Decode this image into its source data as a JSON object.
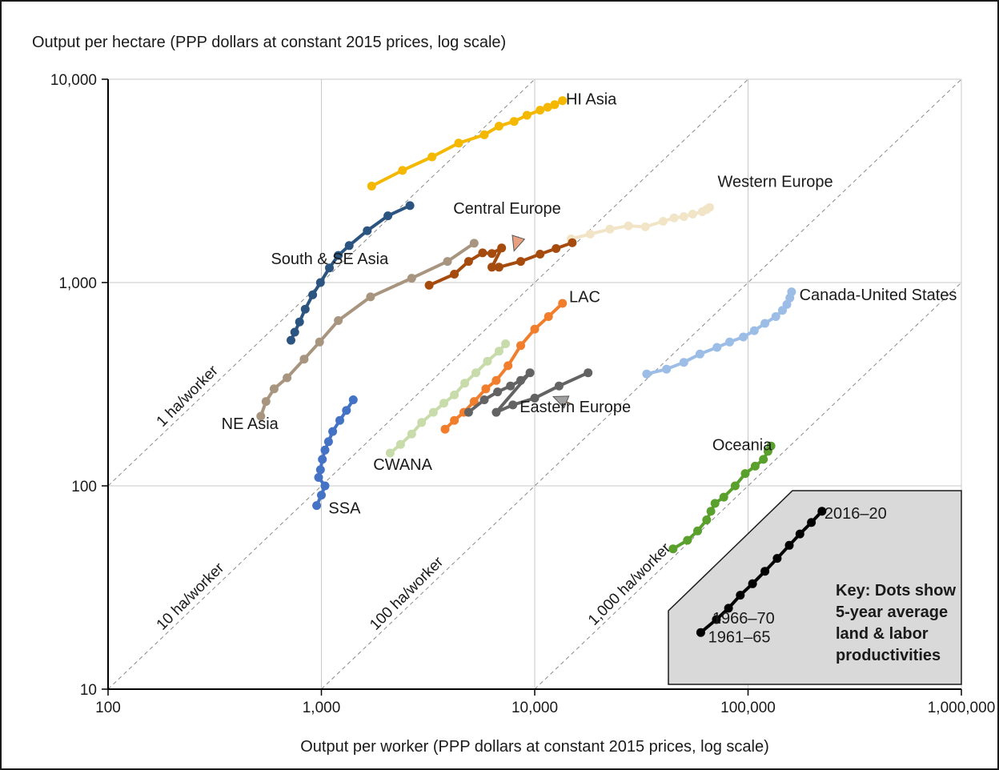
{
  "chart_data": {
    "type": "scatter",
    "xlabel": "Output per worker (PPP dollars at constant 2015 prices, log scale)",
    "ylabel": "Output per hectare (PPP dollars at constant 2015 prices, log scale)",
    "xscale": "log",
    "yscale": "log",
    "xlim": [
      100,
      1000000
    ],
    "ylim": [
      10,
      10000
    ],
    "x_ticks": [
      {
        "value": 100,
        "label": "100"
      },
      {
        "value": 1000,
        "label": "1,000"
      },
      {
        "value": 10000,
        "label": "10,000"
      },
      {
        "value": 100000,
        "label": "100,000"
      },
      {
        "value": 1000000,
        "label": "1,000,000"
      }
    ],
    "y_ticks": [
      {
        "value": 10,
        "label": "10"
      },
      {
        "value": 100,
        "label": "100"
      },
      {
        "value": 1000,
        "label": "1,000"
      },
      {
        "value": 10000,
        "label": "10,000"
      }
    ],
    "grid": true,
    "reference_lines": [
      {
        "ha_per_worker": 1,
        "label": "1 ha/worker",
        "label_x": 180
      },
      {
        "ha_per_worker": 10,
        "label": "10 ha/worker",
        "label_x": 180
      },
      {
        "ha_per_worker": 100,
        "label": "100 ha/worker",
        "label_x": 1800
      },
      {
        "ha_per_worker": 1000,
        "label": "1,000 ha/worker",
        "label_x": 19000
      }
    ],
    "series": [
      {
        "name": "HI Asia",
        "color": "#f5b800",
        "x": [
          1720,
          2400,
          3300,
          4400,
          5800,
          6800,
          8000,
          9200,
          10600,
          11500,
          12400,
          13500
        ],
        "y": [
          2980,
          3560,
          4150,
          4850,
          5330,
          5880,
          6200,
          6650,
          7050,
          7280,
          7500,
          7850
        ]
      },
      {
        "name": "Western Europe",
        "color": "#f2e4c7",
        "x": [
          14800,
          18200,
          22500,
          27500,
          33000,
          40000,
          45000,
          50000,
          55000,
          61000,
          64000,
          66000
        ],
        "y": [
          1640,
          1730,
          1830,
          1900,
          1880,
          2000,
          2080,
          2110,
          2170,
          2230,
          2290,
          2340
        ]
      },
      {
        "name": "Central Europe",
        "color": "#a64b0e",
        "x": [
          3200,
          4200,
          4900,
          5700,
          6300,
          7000,
          6300,
          6800,
          8600,
          10600,
          12600,
          15000
        ],
        "y": [
          970,
          1100,
          1270,
          1400,
          1390,
          1480,
          1190,
          1190,
          1270,
          1380,
          1470,
          1570
        ]
      },
      {
        "name": "South & SE Asia",
        "color": "#2b5580",
        "x": [
          720,
          750,
          790,
          840,
          910,
          990,
          1090,
          1200,
          1350,
          1640,
          2050,
          2600
        ],
        "y": [
          520,
          570,
          640,
          740,
          870,
          1000,
          1180,
          1360,
          1520,
          1800,
          2130,
          2390
        ]
      },
      {
        "name": "NE Asia",
        "color": "#a8957f",
        "x": [
          520,
          550,
          600,
          690,
          830,
          980,
          1200,
          1700,
          2650,
          3900,
          5200
        ],
        "y": [
          220,
          260,
          300,
          340,
          420,
          510,
          650,
          850,
          1050,
          1270,
          1560
        ]
      },
      {
        "name": "LAC",
        "color": "#f07e2c",
        "x": [
          3800,
          4200,
          4650,
          5200,
          5900,
          6600,
          7500,
          8600,
          10000,
          11600,
          13500
        ],
        "y": [
          190,
          210,
          230,
          260,
          300,
          330,
          390,
          490,
          590,
          680,
          790
        ]
      },
      {
        "name": "CWANA",
        "color": "#c8dcab",
        "x": [
          2100,
          2350,
          2650,
          2950,
          3350,
          3750,
          4200,
          4700,
          5300,
          6000,
          6800,
          7300
        ],
        "y": [
          145,
          160,
          180,
          205,
          230,
          255,
          280,
          320,
          360,
          410,
          460,
          500
        ]
      },
      {
        "name": "Eastern Europe",
        "color": "#636363",
        "x": [
          4900,
          5800,
          6700,
          7700,
          8600,
          9500,
          6600,
          7900,
          10000,
          13000,
          17800
        ],
        "y": [
          230,
          265,
          290,
          310,
          330,
          360,
          230,
          250,
          270,
          310,
          360
        ]
      },
      {
        "name": "SSA",
        "color": "#4472c4",
        "x": [
          950,
          1000,
          1040,
          970,
          990,
          1010,
          1040,
          1080,
          1130,
          1220,
          1310,
          1410
        ],
        "y": [
          80,
          90,
          100,
          110,
          120,
          135,
          150,
          165,
          185,
          210,
          235,
          265
        ]
      },
      {
        "name": "Canada-United States",
        "color": "#9cbde6",
        "x": [
          33500,
          41500,
          50000,
          59500,
          71500,
          82000,
          95000,
          107000,
          120000,
          135000,
          145000,
          152000,
          157000,
          160000
        ],
        "y": [
          355,
          375,
          405,
          445,
          480,
          510,
          540,
          580,
          630,
          680,
          730,
          780,
          840,
          900
        ]
      },
      {
        "name": "Oceania",
        "color": "#5aa02c",
        "x": [
          44500,
          52000,
          58000,
          64000,
          67000,
          70000,
          77000,
          87000,
          97000,
          108000,
          118000,
          124000,
          128000
        ],
        "y": [
          49,
          54,
          60,
          68,
          75,
          82,
          88,
          100,
          115,
          125,
          135,
          148,
          157
        ]
      },
      {
        "name": "",
        "color": "#000000",
        "x": [
          60000,
          71000,
          81000,
          92000,
          105000,
          120000,
          137000,
          156000,
          175000,
          198000,
          222000
        ],
        "y": [
          19,
          22,
          25,
          29,
          33,
          38,
          44,
          51,
          58,
          66,
          75
        ]
      }
    ],
    "annotations": [
      {
        "text": "HI Asia",
        "ax": 14000,
        "ay": 7500
      },
      {
        "text": "Western Europe",
        "ax": 72000,
        "ay": 2950
      },
      {
        "text": "Central Europe",
        "ax": 4150,
        "ay": 2180
      },
      {
        "text": "South & SE Asia",
        "ax": 580,
        "ay": 1230
      },
      {
        "text": "NE Asia",
        "ax": 340,
        "ay": 190
      },
      {
        "text": "LAC",
        "ax": 14500,
        "ay": 800
      },
      {
        "text": "Canada-United States",
        "ax": 174000,
        "ay": 820
      },
      {
        "text": "Eastern Europe",
        "ax": 8500,
        "ay": 230
      },
      {
        "text": "CWANA",
        "ax": 1750,
        "ay": 120
      },
      {
        "text": "SSA",
        "ax": 1080,
        "ay": 73
      },
      {
        "text": "Oceania",
        "ax": 68000,
        "ay": 150
      },
      {
        "text": "2016–20",
        "ax": 228000,
        "ay": 69
      },
      {
        "text": "1966–70",
        "ax": 68000,
        "ay": 21
      },
      {
        "text": "1961–65",
        "ax": 65000,
        "ay": 17
      }
    ],
    "arrows": [
      {
        "from": [
          8400,
          1680
        ],
        "to": [
          8000,
          1430
        ],
        "color": "#e8a080"
      },
      {
        "from": [
          15200,
          250
        ],
        "to": [
          12200,
          275
        ],
        "color": "#a0a0a0"
      }
    ],
    "key_text": [
      "Key: Dots show",
      "5-year average",
      "land & labor",
      "productivities"
    ],
    "key_box": {
      "fill": "#d9d9d9",
      "stroke": "#1a1a1a"
    }
  }
}
